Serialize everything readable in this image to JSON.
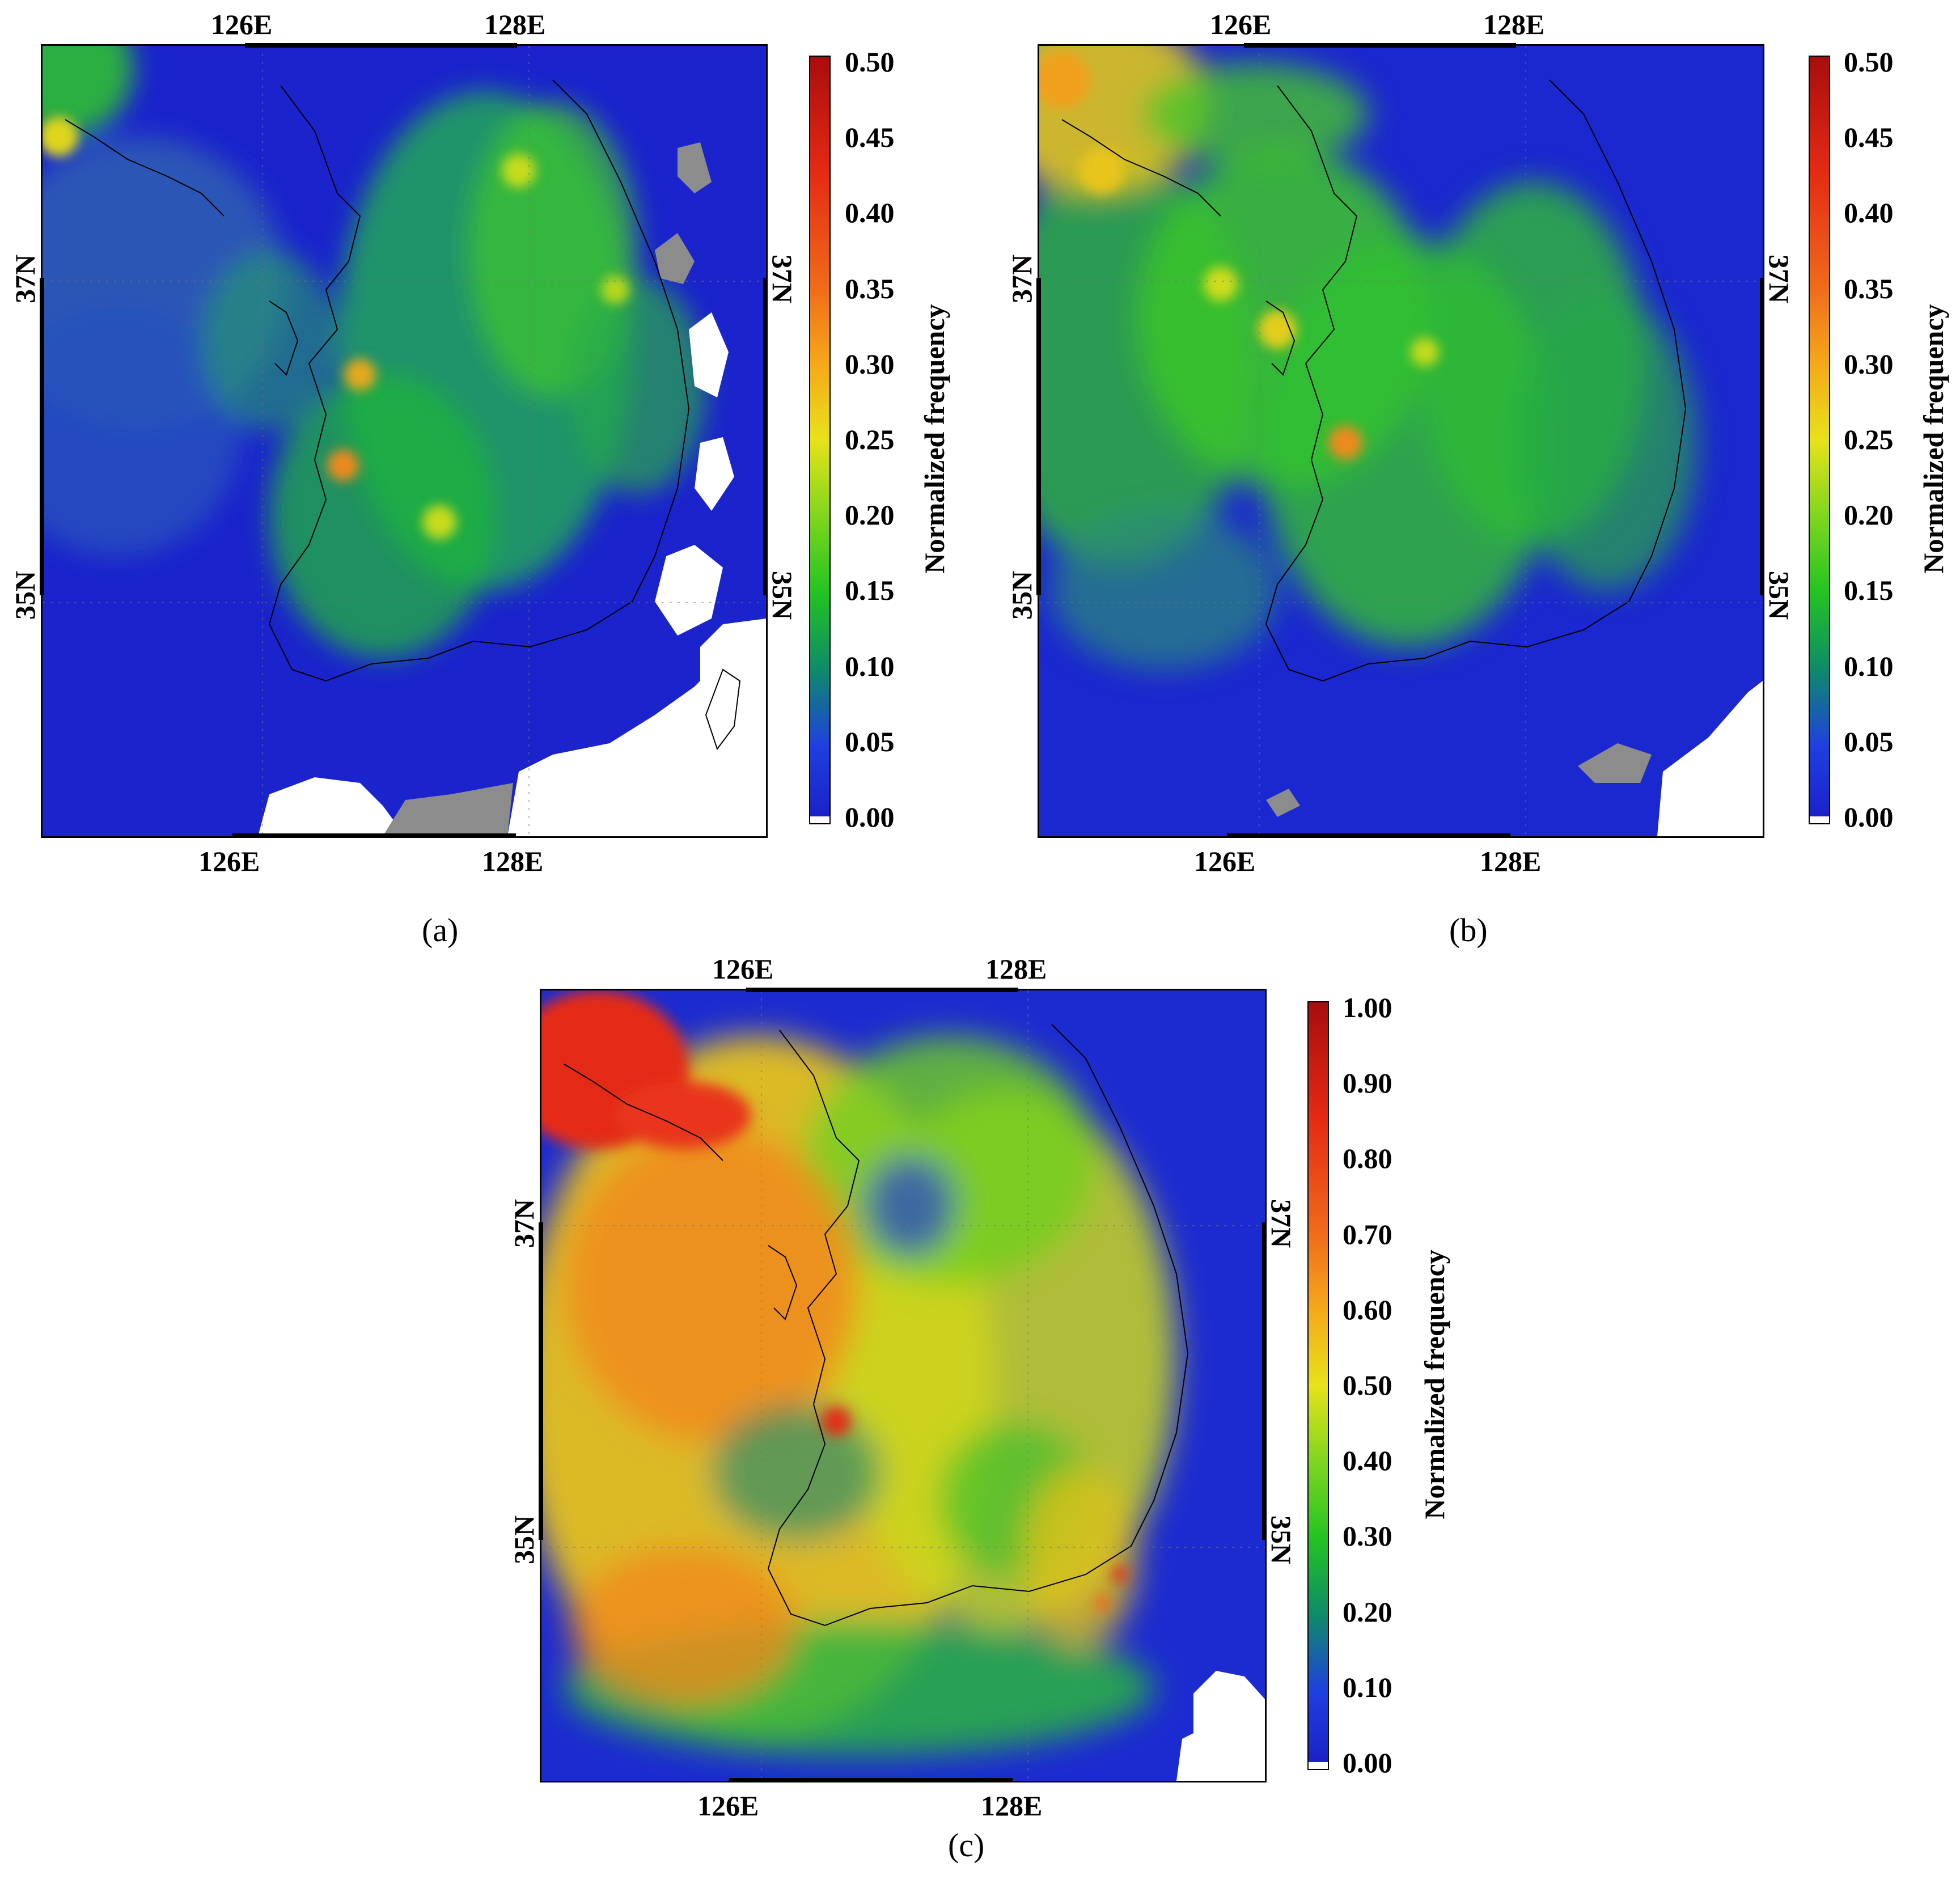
{
  "panels": [
    {
      "id": "a",
      "caption": "(a)",
      "lon_top": [
        "126E",
        "128E"
      ],
      "lon_bottom": [
        "126E",
        "128E"
      ],
      "lat_left": [
        "37N",
        "35N"
      ],
      "lat_right": [
        "37N",
        "35N"
      ],
      "colorbar": {
        "title": "Normalized frequency",
        "ticks": [
          "0.50",
          "0.45",
          "0.40",
          "0.35",
          "0.30",
          "0.25",
          "0.20",
          "0.15",
          "0.10",
          "0.05",
          "0.00"
        ],
        "range": [
          0.0,
          0.5
        ]
      }
    },
    {
      "id": "b",
      "caption": "(b)",
      "lon_top": [
        "126E",
        "128E"
      ],
      "lon_bottom": [
        "126E",
        "128E"
      ],
      "lat_left": [
        "37N",
        "35N"
      ],
      "lat_right": [
        "37N",
        "35N"
      ],
      "colorbar": {
        "title": "Normalized frequency",
        "ticks": [
          "0.50",
          "0.45",
          "0.40",
          "0.35",
          "0.30",
          "0.25",
          "0.20",
          "0.15",
          "0.10",
          "0.05",
          "0.00"
        ],
        "range": [
          0.0,
          0.5
        ]
      }
    },
    {
      "id": "c",
      "caption": "(c)",
      "lon_top": [
        "126E",
        "128E"
      ],
      "lon_bottom": [
        "126E",
        "128E"
      ],
      "lat_left": [
        "37N",
        "35N"
      ],
      "lat_right": [
        "37N",
        "35N"
      ],
      "colorbar": {
        "title": "Normalized frequency",
        "ticks": [
          "1.00",
          "0.90",
          "0.80",
          "0.70",
          "0.60",
          "0.50",
          "0.40",
          "0.30",
          "0.20",
          "0.10",
          "0.00"
        ],
        "range": [
          0.0,
          1.0
        ]
      }
    }
  ],
  "colors": {
    "colormap": [
      "#1a1fc4",
      "#1f3fe0",
      "#0f8a6a",
      "#22c322",
      "#7fd61e",
      "#e8e21a",
      "#f5a81a",
      "#f06a1a",
      "#e42a14",
      "#a80d0d"
    ],
    "no_data": "#ffffff",
    "masked": "#8c8c8c",
    "coastline": "#000000"
  }
}
